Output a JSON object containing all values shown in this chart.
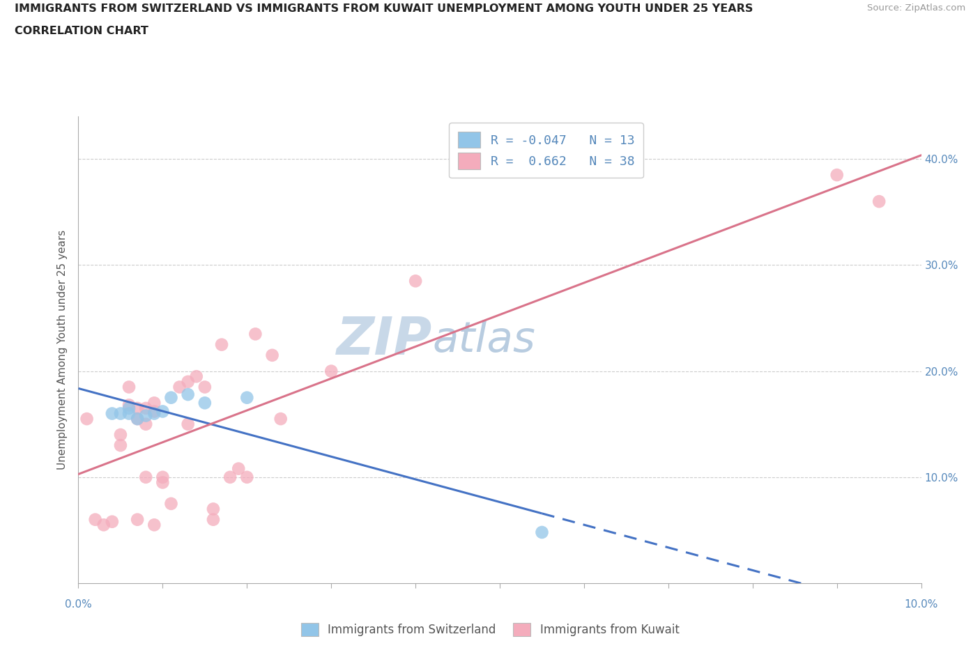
{
  "title_line1": "IMMIGRANTS FROM SWITZERLAND VS IMMIGRANTS FROM KUWAIT UNEMPLOYMENT AMONG YOUTH UNDER 25 YEARS",
  "title_line2": "CORRELATION CHART",
  "source_text": "Source: ZipAtlas.com",
  "ylabel": "Unemployment Among Youth under 25 years",
  "watermark_zip": "ZIP",
  "watermark_atlas": "atlas",
  "legend_label1": "Immigrants from Switzerland",
  "legend_label2": "Immigrants from Kuwait",
  "r1": -0.047,
  "n1": 13,
  "r2": 0.662,
  "n2": 38,
  "color1": "#92C5E8",
  "color2": "#F4ACBC",
  "trendline1_color": "#4472C4",
  "trendline2_color": "#D9738A",
  "xlim": [
    0.0,
    0.1
  ],
  "ylim": [
    0.0,
    0.44
  ],
  "ytick_vals": [
    0.0,
    0.1,
    0.2,
    0.3,
    0.4
  ],
  "ytick_labels_left": [
    "",
    "",
    "",
    "",
    ""
  ],
  "ytick_labels_right": [
    "",
    "10.0%",
    "20.0%",
    "30.0%",
    "40.0%"
  ],
  "xtick_vals": [
    0.0,
    0.01,
    0.02,
    0.03,
    0.04,
    0.05,
    0.06,
    0.07,
    0.08,
    0.09,
    0.1
  ],
  "xtick_label_left": "0.0%",
  "xtick_label_right": "10.0%",
  "switzerland_x": [
    0.004,
    0.005,
    0.006,
    0.006,
    0.007,
    0.008,
    0.009,
    0.01,
    0.011,
    0.013,
    0.015,
    0.02,
    0.055
  ],
  "switzerland_y": [
    0.16,
    0.16,
    0.16,
    0.165,
    0.155,
    0.158,
    0.16,
    0.162,
    0.175,
    0.178,
    0.17,
    0.175,
    0.048
  ],
  "kuwait_x": [
    0.001,
    0.002,
    0.003,
    0.004,
    0.005,
    0.005,
    0.006,
    0.006,
    0.007,
    0.007,
    0.007,
    0.008,
    0.008,
    0.008,
    0.009,
    0.009,
    0.009,
    0.01,
    0.01,
    0.011,
    0.012,
    0.013,
    0.013,
    0.014,
    0.015,
    0.016,
    0.016,
    0.017,
    0.018,
    0.019,
    0.02,
    0.021,
    0.023,
    0.024,
    0.03,
    0.04,
    0.09,
    0.095
  ],
  "kuwait_y": [
    0.155,
    0.06,
    0.055,
    0.058,
    0.14,
    0.13,
    0.168,
    0.185,
    0.155,
    0.165,
    0.06,
    0.15,
    0.165,
    0.1,
    0.17,
    0.162,
    0.055,
    0.095,
    0.1,
    0.075,
    0.185,
    0.15,
    0.19,
    0.195,
    0.185,
    0.06,
    0.07,
    0.225,
    0.1,
    0.108,
    0.1,
    0.235,
    0.215,
    0.155,
    0.2,
    0.285,
    0.385,
    0.36
  ],
  "background_color": "#FFFFFF",
  "grid_color": "#CCCCCC",
  "title_color": "#222222",
  "axis_color": "#AAAAAA",
  "tick_color": "#AAAAAA",
  "label_color": "#5588BB",
  "watermark_zip_color": "#C8D8E8",
  "watermark_atlas_color": "#B8CCE0"
}
